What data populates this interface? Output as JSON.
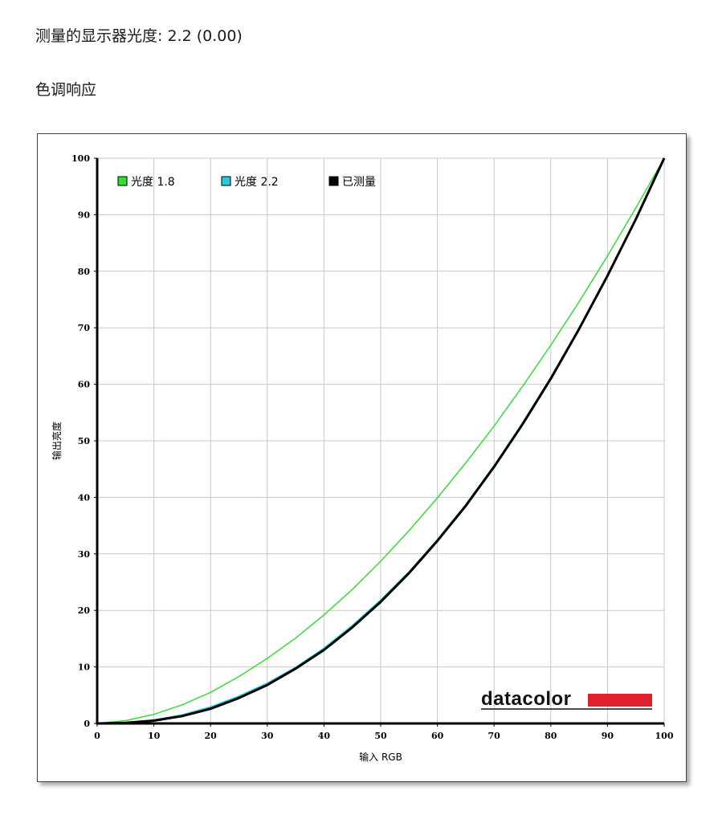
{
  "header": {
    "gamma_label": "测量的显示器光度:",
    "gamma_value": "2.2 (0.00)",
    "section_title": "色调响应"
  },
  "brand": {
    "name": "datacolor",
    "accent_color": "#e0202e"
  },
  "chart_data": {
    "type": "line",
    "title": "",
    "xlabel": "输入 RGB",
    "ylabel": "输出亮度",
    "xlim": [
      0,
      100
    ],
    "ylim": [
      0,
      100
    ],
    "x_ticks": [
      "0",
      "10",
      "20",
      "30",
      "40",
      "50",
      "60",
      "70",
      "80",
      "90",
      "100"
    ],
    "y_ticks": [
      "0",
      "10",
      "20",
      "30",
      "40",
      "50",
      "60",
      "70",
      "80",
      "90",
      "100"
    ],
    "grid": true,
    "legend_position": "top-left",
    "x": [
      0,
      5,
      10,
      15,
      20,
      25,
      30,
      35,
      40,
      45,
      50,
      55,
      60,
      65,
      70,
      75,
      80,
      85,
      90,
      95,
      100
    ],
    "series": [
      {
        "name": "光度 1.8",
        "color": "#33dd33",
        "values": [
          0,
          0.5,
          1.6,
          3.3,
          5.5,
          8.3,
          11.5,
          15.1,
          19.2,
          23.7,
          28.7,
          34.1,
          39.9,
          46.1,
          52.6,
          59.6,
          66.9,
          74.6,
          82.7,
          91.2,
          100
        ]
      },
      {
        "name": "光度 2.2",
        "color": "#22ccdd",
        "values": [
          0,
          0.1,
          0.6,
          1.5,
          2.9,
          4.8,
          7.1,
          9.9,
          13.3,
          17.3,
          21.8,
          26.8,
          32.5,
          38.7,
          45.6,
          53.1,
          61.2,
          69.9,
          79.3,
          89.3,
          100
        ]
      },
      {
        "name": "已测量",
        "color": "#000000",
        "values": [
          0,
          0.1,
          0.5,
          1.3,
          2.6,
          4.5,
          6.8,
          9.7,
          13.0,
          17.0,
          21.5,
          26.6,
          32.3,
          38.5,
          45.4,
          52.9,
          61.0,
          69.8,
          79.2,
          89.2,
          100
        ]
      }
    ]
  }
}
